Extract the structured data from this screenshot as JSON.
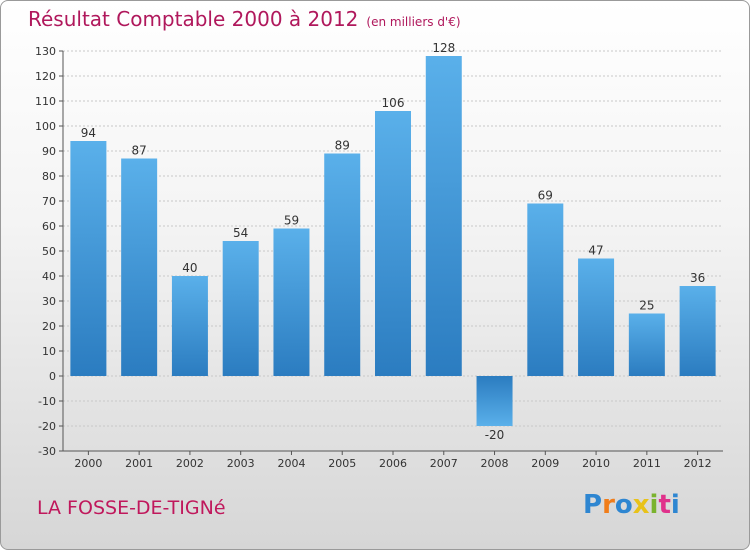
{
  "chart_data": {
    "type": "bar",
    "title": "Résultat Comptable 2000 à 2012",
    "subtitle": "(en milliers d'€)",
    "categories": [
      "2000",
      "2001",
      "2002",
      "2003",
      "2004",
      "2005",
      "2006",
      "2007",
      "2008",
      "2009",
      "2010",
      "2011",
      "2012"
    ],
    "values": [
      94,
      87,
      40,
      54,
      59,
      89,
      106,
      128,
      -20,
      69,
      47,
      25,
      36
    ],
    "ylim": [
      -30,
      130
    ],
    "yticks": [
      -30,
      -20,
      -10,
      0,
      10,
      20,
      30,
      40,
      50,
      60,
      70,
      80,
      90,
      100,
      110,
      120,
      130
    ],
    "grid": true,
    "bar_color": "#4ea3e0"
  },
  "commune": "LA FOSSE-DE-TIGNé",
  "logo": {
    "letters": [
      "P",
      "r",
      "o",
      "x",
      "i",
      "t",
      "i"
    ],
    "colors": [
      "#2e86d1",
      "#f07d1a",
      "#2e86d1",
      "#e8c21a",
      "#7ab32e",
      "#e0318b",
      "#2e86d1"
    ]
  }
}
